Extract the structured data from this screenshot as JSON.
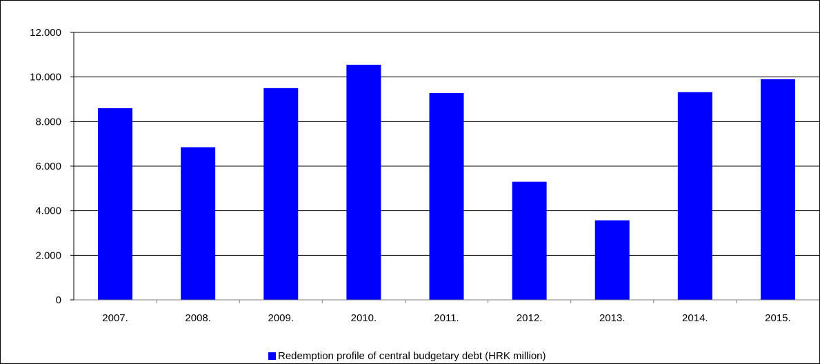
{
  "chart_data": {
    "type": "bar",
    "categories": [
      "2007.",
      "2008.",
      "2009.",
      "2010.",
      "2011.",
      "2012.",
      "2013.",
      "2014.",
      "2015."
    ],
    "series": [
      {
        "name": "Redemption profile of central budgetary debt (HRK million)",
        "values": [
          8600,
          6850,
          9500,
          10550,
          9280,
          5300,
          3570,
          9320,
          9900
        ],
        "color": "#0000FF"
      }
    ],
    "yticks": [
      "0",
      "2.000",
      "4.000",
      "6.000",
      "8.000",
      "10.000",
      "12.000"
    ],
    "ylim": [
      0,
      12000
    ],
    "grid": true,
    "legend_position": "bottom",
    "title": "",
    "xlabel": "",
    "ylabel": ""
  }
}
